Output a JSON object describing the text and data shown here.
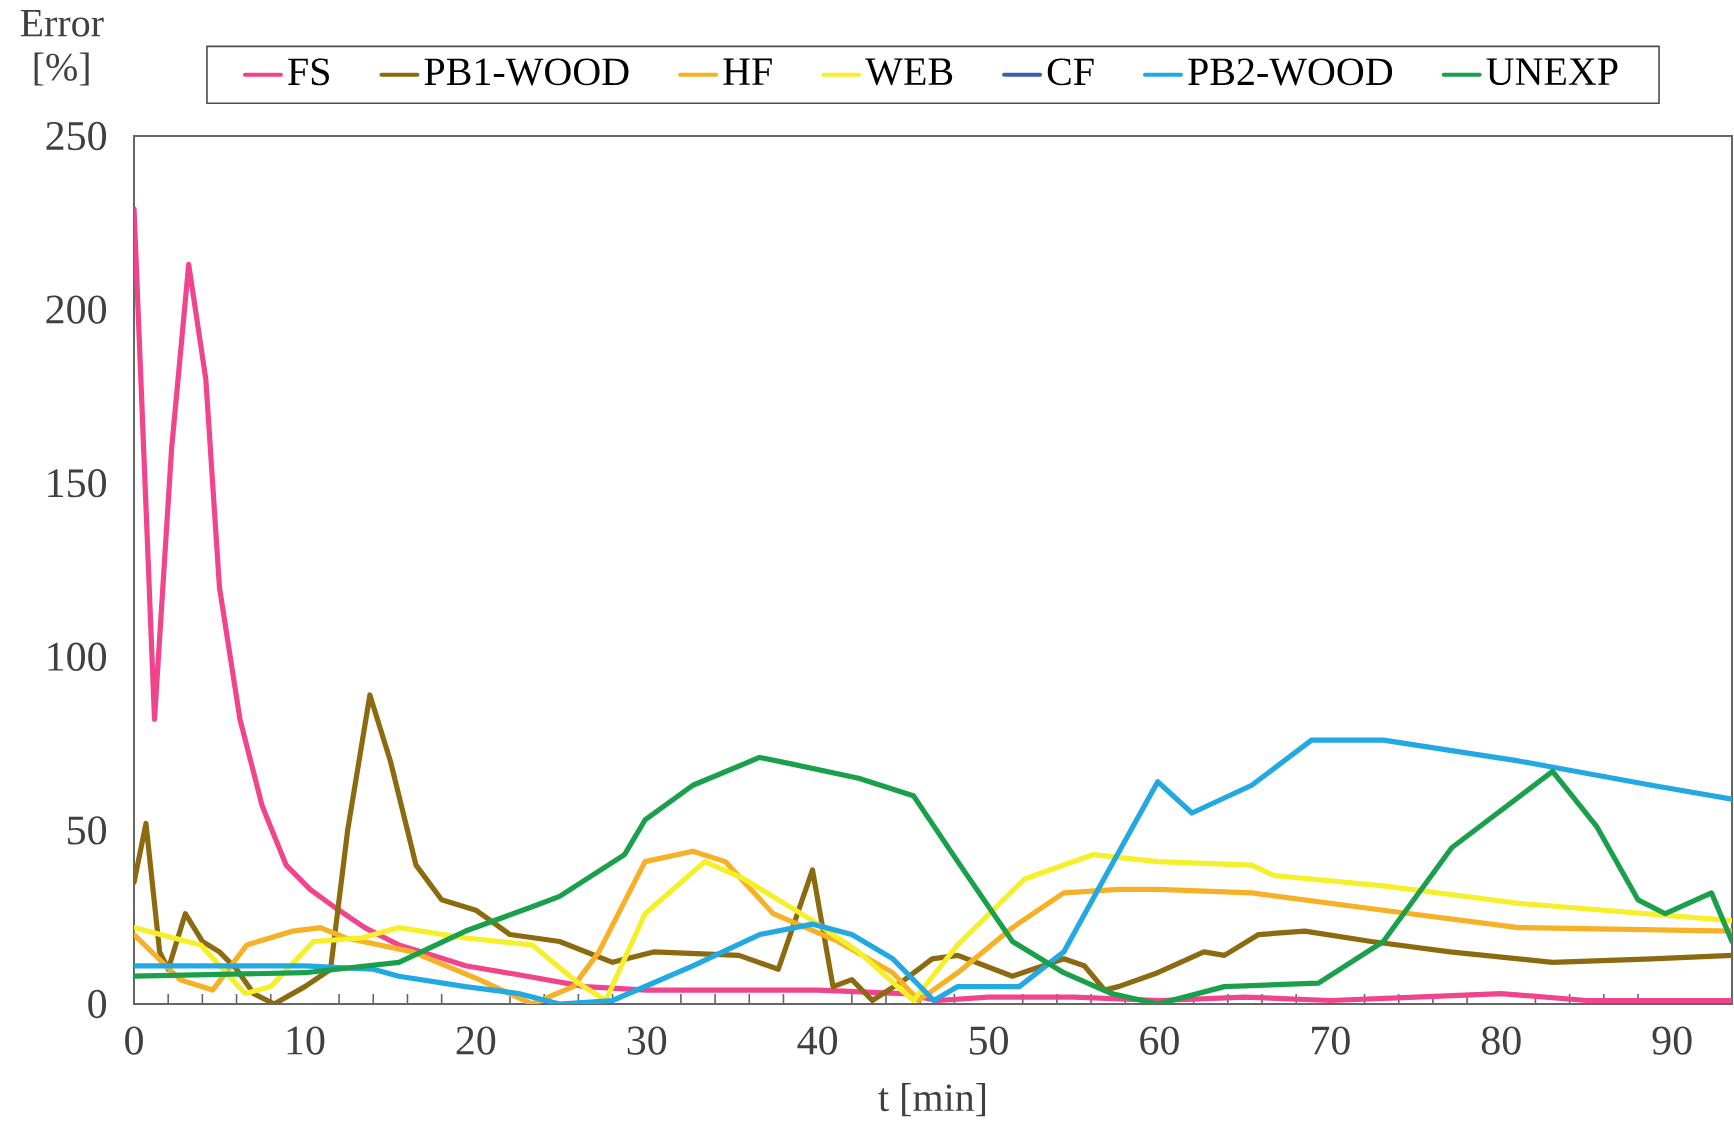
{
  "chart_data": {
    "type": "line",
    "xlabel": "t [min]",
    "ylabel": "Error [%]",
    "xlim": [
      0,
      93.5
    ],
    "ylim": [
      0,
      250
    ],
    "xticks": [
      0,
      10,
      20,
      30,
      40,
      50,
      60,
      70,
      80,
      90
    ],
    "yticks": [
      0,
      50,
      100,
      150,
      200,
      250
    ],
    "legend": "top",
    "grid": false,
    "marker": "none",
    "line_style": "solid",
    "series": [
      {
        "name": "FS",
        "color": "#f0448c",
        "x": [
          0,
          1.2,
          2.2,
          3.2,
          4.2,
          5,
          6.2,
          7.5,
          8.9,
          10.3,
          11.7,
          13.5,
          15.5,
          17.5,
          19.4,
          23,
          26.4,
          30,
          35,
          40,
          45,
          47,
          50,
          55,
          60,
          65,
          70,
          75,
          80,
          85,
          90,
          93.5
        ],
        "values": [
          229,
          82,
          160,
          213,
          180,
          120,
          82,
          57,
          40,
          33,
          28,
          22,
          17,
          14,
          11,
          8,
          5,
          4,
          4,
          4,
          3,
          1,
          2,
          2,
          1,
          2,
          1,
          2,
          3,
          1,
          1,
          1
        ]
      },
      {
        "name": "PB1-WOOD",
        "color": "#8b6a10",
        "x": [
          0,
          0.7,
          1.5,
          2,
          3,
          4,
          5,
          6,
          7,
          8.2,
          10,
          11.5,
          12.5,
          13.8,
          15,
          16.5,
          18,
          20,
          22,
          24.9,
          28,
          30.4,
          35.4,
          37.7,
          39.7,
          40.9,
          42,
          43.2,
          45.1,
          46.7,
          48.2,
          51.4,
          54.4,
          55.6,
          56.8,
          57.6,
          59.9,
          62.6,
          63.8,
          65.8,
          68.5,
          72.4,
          77,
          83,
          88.8,
          93.5
        ],
        "values": [
          35,
          52,
          15,
          10,
          26,
          18,
          15,
          10,
          3,
          0,
          5,
          10,
          50,
          89,
          70,
          40,
          30,
          27,
          20,
          18,
          12,
          15,
          14,
          10,
          38.6,
          5,
          7,
          1,
          7,
          13,
          14,
          8,
          13,
          11,
          4,
          5,
          9,
          15,
          14,
          20,
          21,
          18,
          15,
          12,
          13,
          14
        ]
      },
      {
        "name": "HF",
        "color": "#f7b126",
        "x": [
          0,
          2.7,
          4.6,
          6.6,
          9.3,
          10.9,
          12.4,
          16.3,
          20.2,
          23.3,
          25.7,
          27.2,
          29.9,
          32.7,
          34.6,
          37.4,
          41.2,
          44.4,
          45.9,
          48.2,
          51.4,
          54.4,
          57.6,
          59.9,
          65.4,
          73.1,
          81,
          93.5
        ],
        "values": [
          20,
          7,
          4,
          17,
          21,
          22,
          19,
          15,
          7,
          0,
          5,
          15,
          41,
          44,
          41,
          26,
          18,
          9,
          1,
          9,
          22,
          32,
          33,
          33,
          32,
          27,
          22,
          21
        ]
      },
      {
        "name": "WEB",
        "color": "#f5f02a",
        "x": [
          0,
          3.9,
          6.5,
          8,
          10.5,
          13.3,
          15.5,
          19.4,
          23.3,
          26,
          27.6,
          29.9,
          33.4,
          35.7,
          39.7,
          42.4,
          45.6,
          48.2,
          52.1,
          56.1,
          59.9,
          65.4,
          66.7,
          73.1,
          81,
          93.5
        ],
        "values": [
          22,
          17,
          3,
          5,
          18,
          19,
          22,
          19,
          17,
          6,
          1,
          26,
          41,
          36,
          24,
          15,
          1,
          17,
          36,
          43,
          41,
          40,
          37,
          34,
          29,
          24
        ]
      },
      {
        "name": "CF",
        "color": "#3c5fae"
      },
      {
        "name": "PB2-WOOD",
        "color": "#22a9e1",
        "x": [
          0,
          10,
          14,
          15.5,
          19.4,
          22.5,
          24.9,
          28,
          32.7,
          36.6,
          39.7,
          42,
          44.4,
          46.8,
          48.2,
          51.8,
          54.4,
          57.2,
          59.9,
          61.9,
          65.4,
          68.9,
          73.1,
          81,
          88.8,
          93.5
        ],
        "values": [
          11,
          11,
          10,
          8,
          5,
          3,
          0,
          1,
          11,
          20,
          23,
          20,
          13,
          1,
          5,
          5,
          15,
          40,
          64,
          55,
          63,
          76,
          76,
          70,
          63,
          59
        ]
      },
      {
        "name": "UNEXP",
        "color": "#1aa04a",
        "x": [
          0,
          10,
          15.5,
          19.4,
          23.3,
          24.9,
          28.7,
          29.9,
          32.7,
          36.6,
          38.6,
          42.4,
          45.6,
          48.2,
          51.4,
          54.4,
          57.2,
          59.9,
          63.8,
          69.3,
          73.1,
          77.1,
          83,
          85.6,
          88,
          89.6,
          92.3,
          93.5
        ],
        "values": [
          8,
          9,
          12,
          21,
          28,
          31,
          43,
          53,
          63,
          71,
          69,
          65,
          60,
          41,
          18,
          9,
          3,
          0,
          5,
          6,
          18,
          45,
          67,
          51,
          30,
          26,
          32,
          18
        ]
      }
    ]
  }
}
